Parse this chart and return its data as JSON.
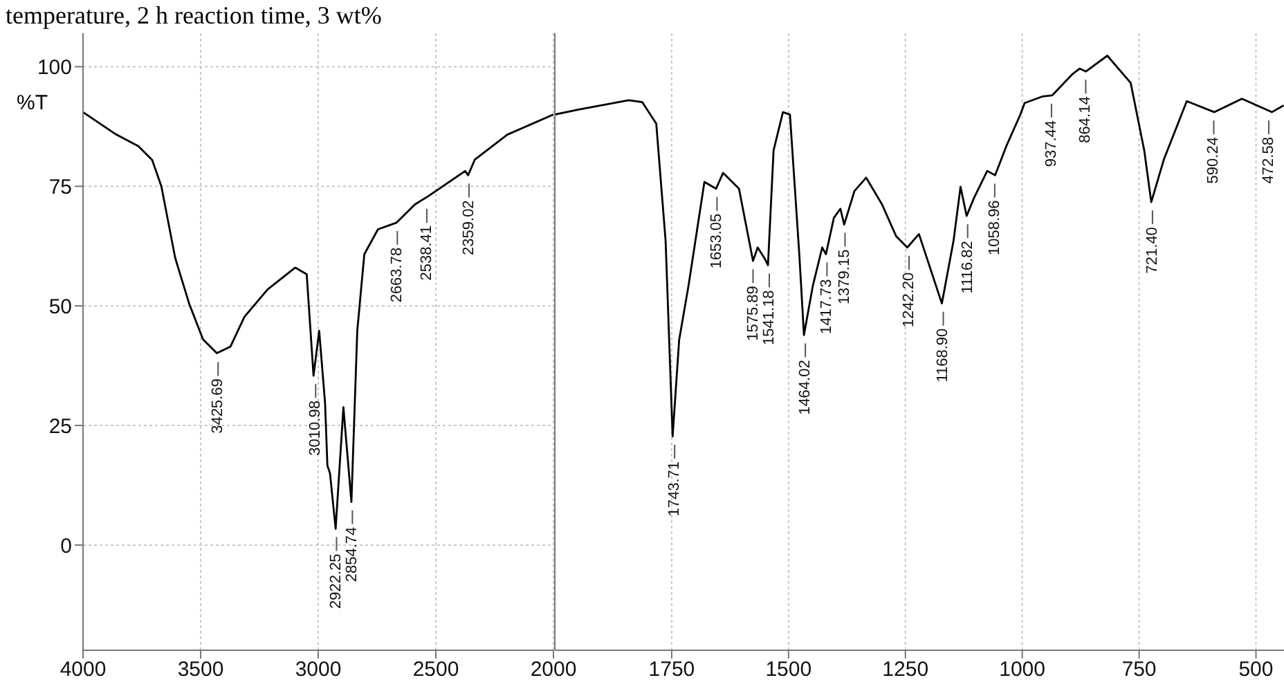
{
  "chart_data": [
    {
      "type": "line",
      "title": "temperature, 2 h reaction time, 3 wt%",
      "ylabel": "%T",
      "xlim": [
        4000,
        2000
      ],
      "xticks": [
        4000,
        3500,
        3000,
        2500,
        2000
      ],
      "ylim": [
        -22,
        107
      ],
      "yticks": [
        0,
        25,
        50,
        75,
        100
      ],
      "grid": true,
      "series": [
        {
          "color": "#000000",
          "x": [
            4000,
            3865,
            3765,
            3706,
            3667,
            3608,
            3549,
            3490,
            3431,
            3373,
            3314,
            3216,
            3098,
            3049,
            3020,
            2996,
            2971,
            2961,
            2950,
            2926,
            2893,
            2859,
            2834,
            2804,
            2746,
            2667,
            2589,
            2530,
            2375,
            2363,
            2334,
            2196,
            2000
          ],
          "values": [
            90.5,
            86,
            83.4,
            80.5,
            75,
            60,
            50.5,
            43,
            40.1,
            41.5,
            47.7,
            53.4,
            58,
            56.6,
            35.4,
            44.8,
            29.7,
            16.6,
            15,
            3.4,
            28.8,
            9,
            44.8,
            60.8,
            66,
            67.4,
            71.2,
            73,
            78.2,
            77.3,
            80.6,
            85.8,
            90
          ]
        }
      ],
      "annotations": [
        {
          "text": "3425.69",
          "x": 3425.69,
          "y": 40
        },
        {
          "text": "3010.98",
          "x": 3010.98,
          "y": 35.4
        },
        {
          "text": "2922.25",
          "x": 2922.25,
          "y": 3.4
        },
        {
          "text": "2854.74",
          "x": 2854.74,
          "y": 9
        },
        {
          "text": "2663.78",
          "x": 2663.78,
          "y": 67.4
        },
        {
          "text": "2538.41",
          "x": 2538.41,
          "y": 72
        },
        {
          "text": "2359.02",
          "x": 2359.02,
          "y": 77.3
        }
      ]
    },
    {
      "type": "line",
      "xlim": [
        2000,
        440
      ],
      "xticks": [
        1750,
        1500,
        1250,
        1000,
        750,
        500
      ],
      "ylim": [
        -22,
        107
      ],
      "yticks": [
        0,
        25,
        50,
        75,
        100
      ],
      "grid": true,
      "tick_labels": "x",
      "series": [
        {
          "color": "#000000",
          "x": [
            2000,
            1951,
            1842,
            1813,
            1783,
            1763,
            1748,
            1734,
            1714,
            1680,
            1655,
            1640,
            1606,
            1576,
            1566,
            1551,
            1544,
            1532,
            1512,
            1497,
            1477,
            1467,
            1448,
            1428,
            1420,
            1403,
            1389,
            1381,
            1359,
            1334,
            1300,
            1270,
            1246,
            1221,
            1172,
            1147,
            1132,
            1119,
            1103,
            1075,
            1058,
            1034,
            1004,
            995,
            956,
            936,
            892,
            877,
            864,
            818,
            768,
            739,
            724,
            697,
            648,
            589,
            530,
            466,
            441
          ],
          "values": [
            90,
            91,
            93,
            92.6,
            88.1,
            63.6,
            22.7,
            42.9,
            54.2,
            75.9,
            74.5,
            77.8,
            74.5,
            59.4,
            62.2,
            59.9,
            58.5,
            82.5,
            90.5,
            90,
            60.8,
            43.9,
            54.2,
            62.2,
            60.8,
            68.4,
            70.3,
            67,
            74,
            76.8,
            71.2,
            64.6,
            62.2,
            65,
            50.5,
            63.6,
            74.9,
            68.8,
            72.6,
            78.2,
            77.3,
            83.4,
            90,
            92.4,
            93.8,
            94,
            98.5,
            99.6,
            99,
            102.3,
            96.6,
            82.5,
            71.7,
            80.6,
            92.8,
            90.5,
            93.3,
            90.5,
            91.9
          ]
        }
      ],
      "annotations": [
        {
          "text": "1743.71",
          "x": 1743.71,
          "y": 22.7
        },
        {
          "text": "1653.05",
          "x": 1653.05,
          "y": 74.5
        },
        {
          "text": "1575.89",
          "x": 1575.89,
          "y": 59.4
        },
        {
          "text": "1541.18",
          "x": 1541.18,
          "y": 58.5
        },
        {
          "text": "1464.02",
          "x": 1464.02,
          "y": 43.9
        },
        {
          "text": "1417.73",
          "x": 1417.73,
          "y": 60.8
        },
        {
          "text": "1379.15",
          "x": 1379.15,
          "y": 67
        },
        {
          "text": "1242.20",
          "x": 1242.2,
          "y": 62.2
        },
        {
          "text": "1168.90",
          "x": 1168.9,
          "y": 50.5
        },
        {
          "text": "1116.82",
          "x": 1116.82,
          "y": 68.8
        },
        {
          "text": "1058.96",
          "x": 1058.96,
          "y": 77.3
        },
        {
          "text": "937.44",
          "x": 937.44,
          "y": 94
        },
        {
          "text": "864.14",
          "x": 864.14,
          "y": 99
        },
        {
          "text": "721.40",
          "x": 721.4,
          "y": 71.7
        },
        {
          "text": "590.24",
          "x": 590.24,
          "y": 90.5
        },
        {
          "text": "472.58",
          "x": 472.58,
          "y": 90.5
        }
      ]
    }
  ]
}
